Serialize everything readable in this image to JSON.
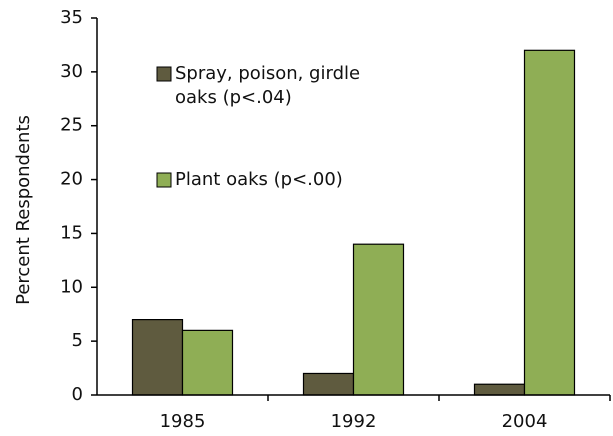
{
  "chart_data": {
    "type": "bar",
    "categories": [
      "1985",
      "1992",
      "2004"
    ],
    "series": [
      {
        "name": "Spray, poison, girdle oaks (p<.04)",
        "color": "#5f5b3f",
        "values": [
          7,
          2,
          1
        ]
      },
      {
        "name": "Plant oaks (p<.00)",
        "color": "#8fae55",
        "values": [
          6,
          14,
          32
        ]
      }
    ],
    "y_label": "Percent Respondents",
    "ylim": [
      0,
      35
    ],
    "yticks": [
      0,
      5,
      10,
      15,
      20,
      25,
      30,
      35
    ]
  }
}
